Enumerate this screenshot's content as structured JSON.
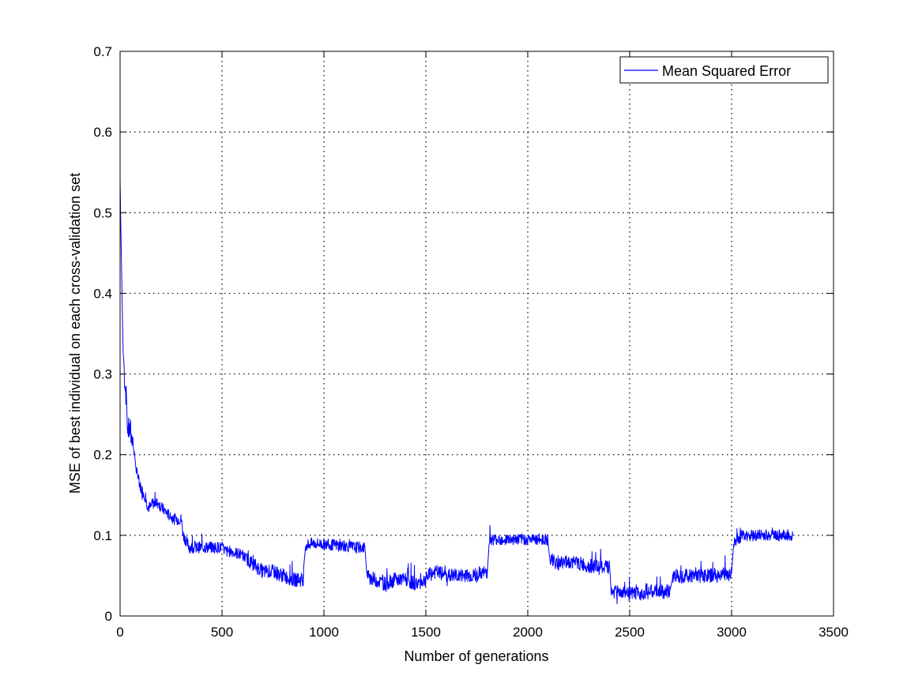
{
  "chart_data": {
    "type": "line",
    "title": "",
    "xlabel": "Number of generations",
    "ylabel": "MSE of best individual on each cross-validation set",
    "xlim": [
      0,
      3500
    ],
    "ylim": [
      0,
      0.7
    ],
    "xticks": [
      0,
      500,
      1000,
      1500,
      2000,
      2500,
      3000,
      3500
    ],
    "yticks": [
      0,
      0.1,
      0.2,
      0.3,
      0.4,
      0.5,
      0.6,
      0.7
    ],
    "xtick_labels": [
      "0",
      "500",
      "1000",
      "1500",
      "2000",
      "2500",
      "3000",
      "3500"
    ],
    "ytick_labels": [
      "0",
      "0.1",
      "0.2",
      "0.3",
      "0.4",
      "0.5",
      "0.6",
      "0.7"
    ],
    "grid": true,
    "legend_position": "top-right",
    "series": [
      {
        "name": "Mean Squared Error",
        "color": "#0000ff",
        "x": [
          0,
          3,
          6,
          10,
          15,
          20,
          25,
          30,
          35,
          40,
          45,
          50,
          55,
          60,
          70,
          80,
          90,
          100,
          110,
          120,
          130,
          140,
          150,
          160,
          170,
          180,
          190,
          200,
          220,
          240,
          260,
          280,
          300,
          310,
          320,
          330,
          340,
          350,
          380,
          400,
          450,
          500,
          520,
          550,
          600,
          650,
          700,
          750,
          800,
          850,
          900,
          910,
          950,
          1000,
          1050,
          1100,
          1150,
          1200,
          1210,
          1250,
          1300,
          1350,
          1400,
          1450,
          1500,
          1510,
          1550,
          1600,
          1650,
          1700,
          1750,
          1800,
          1810,
          1850,
          1900,
          1950,
          2000,
          2050,
          2100,
          2110,
          2150,
          2200,
          2250,
          2300,
          2350,
          2400,
          2410,
          2450,
          2500,
          2550,
          2600,
          2650,
          2700,
          2710,
          2750,
          2800,
          2850,
          2900,
          2950,
          3000,
          3010,
          3050,
          3100,
          3150,
          3200,
          3250,
          3300
        ],
        "y": [
          0.54,
          0.5,
          0.45,
          0.38,
          0.33,
          0.3,
          0.29,
          0.27,
          0.24,
          0.23,
          0.23,
          0.23,
          0.22,
          0.22,
          0.2,
          0.18,
          0.17,
          0.16,
          0.155,
          0.15,
          0.14,
          0.135,
          0.135,
          0.14,
          0.14,
          0.14,
          0.14,
          0.135,
          0.13,
          0.125,
          0.12,
          0.12,
          0.12,
          0.1,
          0.095,
          0.09,
          0.085,
          0.085,
          0.085,
          0.085,
          0.085,
          0.085,
          0.08,
          0.08,
          0.075,
          0.065,
          0.055,
          0.055,
          0.05,
          0.045,
          0.045,
          0.088,
          0.09,
          0.089,
          0.088,
          0.087,
          0.085,
          0.085,
          0.05,
          0.045,
          0.04,
          0.045,
          0.045,
          0.04,
          0.045,
          0.05,
          0.055,
          0.05,
          0.05,
          0.05,
          0.05,
          0.055,
          0.095,
          0.095,
          0.095,
          0.095,
          0.095,
          0.095,
          0.095,
          0.07,
          0.065,
          0.068,
          0.065,
          0.062,
          0.06,
          0.06,
          0.03,
          0.03,
          0.027,
          0.028,
          0.03,
          0.03,
          0.03,
          0.05,
          0.05,
          0.05,
          0.05,
          0.05,
          0.052,
          0.052,
          0.09,
          0.1,
          0.1,
          0.1,
          0.1,
          0.1,
          0.1
        ]
      }
    ]
  }
}
